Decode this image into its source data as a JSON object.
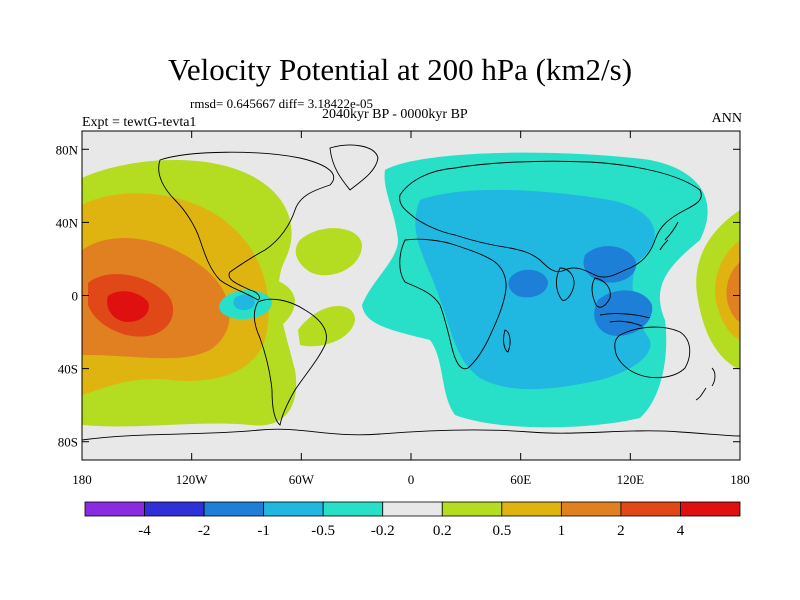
{
  "title": "Velocity Potential at 200 hPa (km2/s)",
  "stats": "rmsd= 0.645667 diff= 3.18422e-05",
  "period": "2040kyr BP - 0000kyr BP",
  "experiment": "Expt = tewtG-tevta1",
  "season": "ANN",
  "map": {
    "projection": "cylindrical-equidistant",
    "lon_range": [
      -180,
      180
    ],
    "lat_range": [
      -90,
      90
    ],
    "lon_ticks": [
      {
        "value": -180,
        "label": "180"
      },
      {
        "value": -120,
        "label": "120W"
      },
      {
        "value": -60,
        "label": "60W"
      },
      {
        "value": 0,
        "label": "0"
      },
      {
        "value": 60,
        "label": "60E"
      },
      {
        "value": 120,
        "label": "120E"
      },
      {
        "value": 180,
        "label": "180"
      }
    ],
    "lat_ticks": [
      {
        "value": 80,
        "label": "80N"
      },
      {
        "value": 40,
        "label": "40N"
      },
      {
        "value": 0,
        "label": "0"
      },
      {
        "value": -40,
        "label": "40S"
      },
      {
        "value": -80,
        "label": "80S"
      }
    ],
    "background_color": "#e8e8e8",
    "coastline_color": "#000000"
  },
  "colorbar": {
    "levels": [
      "-4",
      "-2",
      "-1",
      "-0.5",
      "-0.2",
      "0.2",
      "0.5",
      "1",
      "2",
      "4"
    ],
    "colors": [
      "#8a2be2",
      "#3030d8",
      "#1e7fd8",
      "#20b8e0",
      "#28e0c8",
      "#e8e8e8",
      "#b4dc20",
      "#e0b410",
      "#e08020",
      "#e04818",
      "#e01010"
    ]
  },
  "fields": {
    "positive_centers": [
      {
        "name": "central-pacific-maximum",
        "lon": -160,
        "lat": -5,
        "level": "4"
      },
      {
        "name": "east-hemisphere-dateline-maximum",
        "lon": 178,
        "lat": 0,
        "level": "1"
      }
    ],
    "negative_centers": [
      {
        "name": "africa-minimum",
        "lon": 55,
        "lat": 5,
        "level": "-1"
      },
      {
        "name": "indonesia-minimum",
        "lon": 110,
        "lat": -10,
        "level": "-1"
      },
      {
        "name": "south-asia-minimum",
        "lon": 100,
        "lat": 20,
        "level": "-1"
      },
      {
        "name": "east-pacific-minimum",
        "lon": -90,
        "lat": -5,
        "level": "-0.5"
      }
    ]
  }
}
